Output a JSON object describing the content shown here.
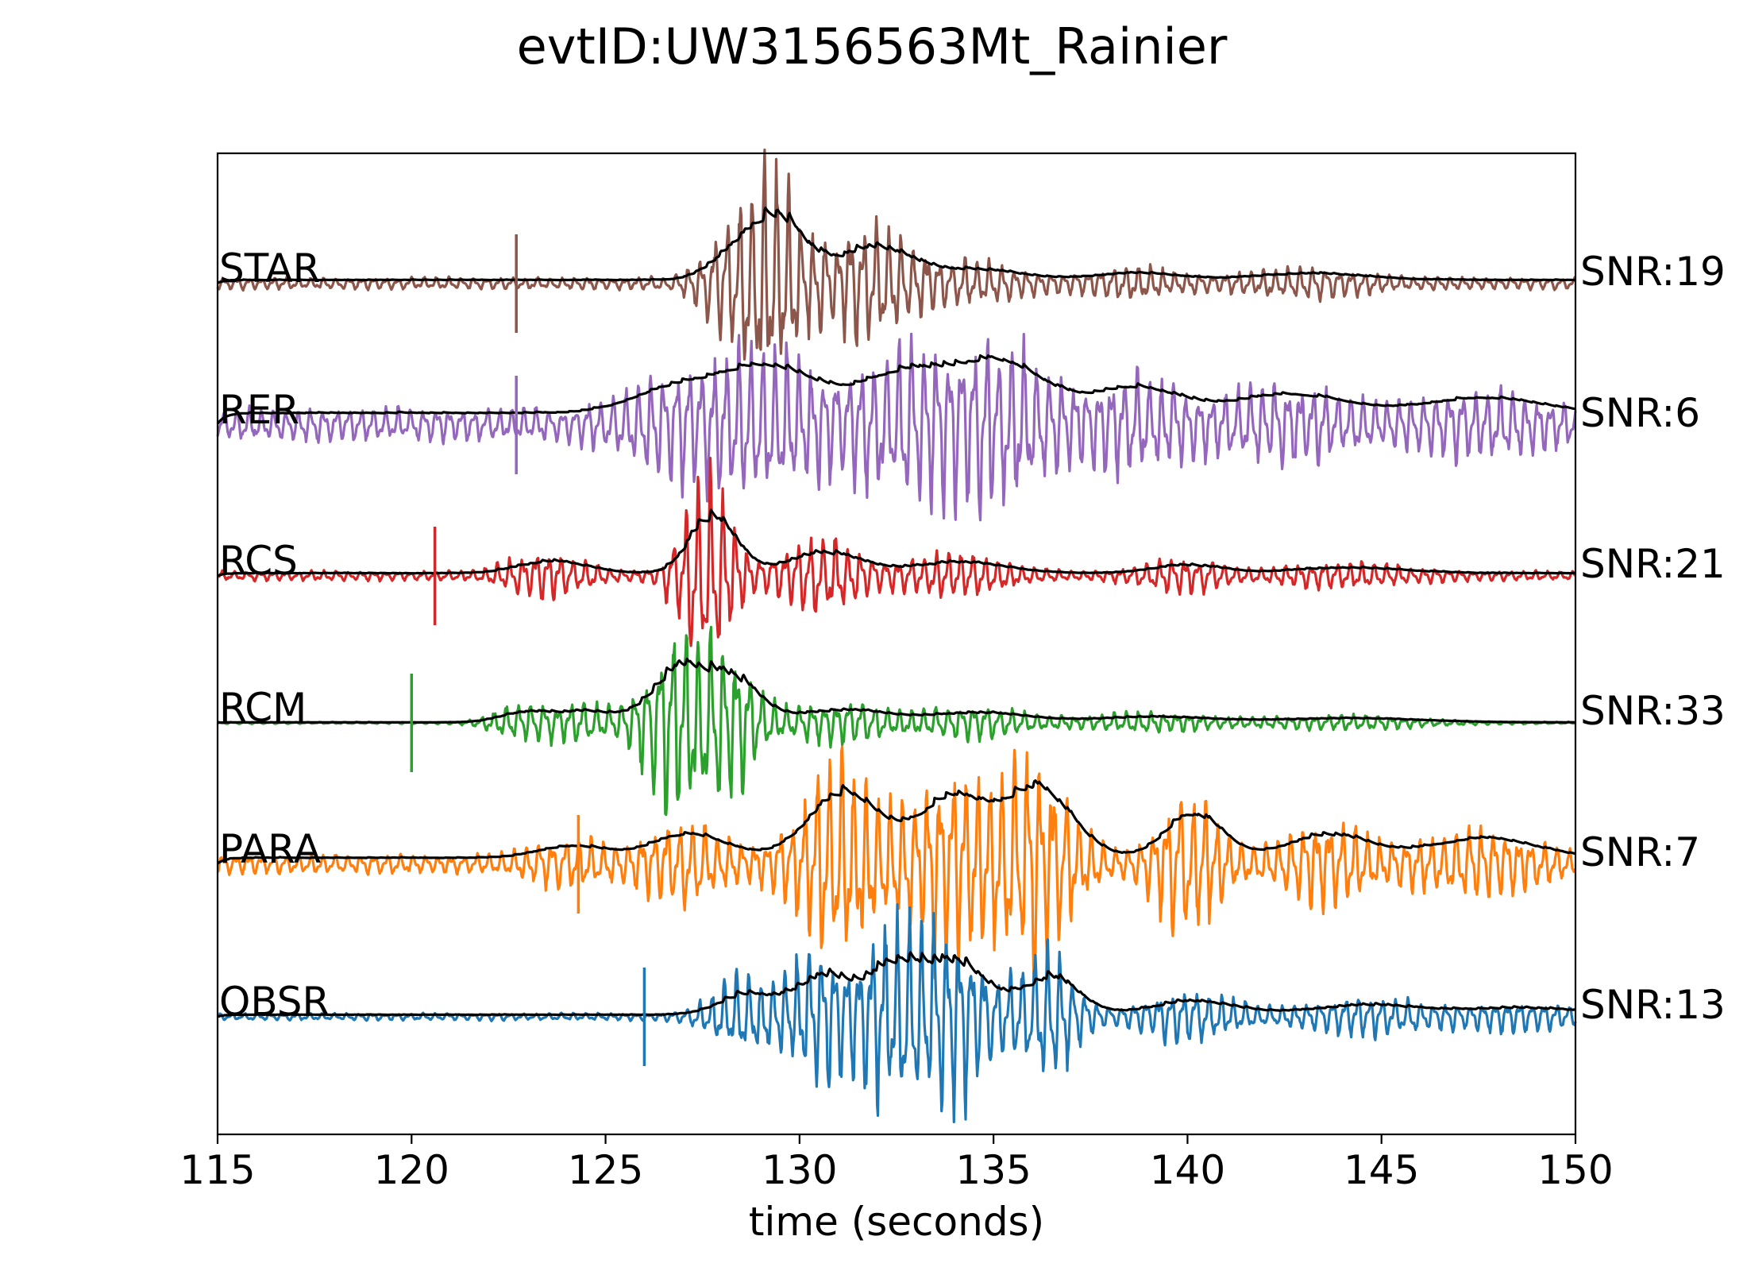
{
  "chart_data": {
    "type": "line",
    "title": "evtID:UW3156563Mt_Rainier",
    "xlabel": "time (seconds)",
    "ylabel": "",
    "xlim": [
      115,
      150
    ],
    "xticks": [
      "115",
      "120",
      "125",
      "130",
      "135",
      "140",
      "145",
      "150"
    ],
    "xtick_values": [
      115,
      120,
      125,
      130,
      135,
      140,
      145,
      150
    ],
    "grid": false,
    "legend": "none",
    "envelope_color": "#000000",
    "series": [
      {
        "name": "STAR",
        "snr_label": "SNR:19",
        "color": "#8c564b",
        "pick_time": 122.7,
        "noise": 0.05,
        "env_scale": 0.6,
        "packets": [
          {
            "t": 128.4,
            "amp": 0.45,
            "width": 1.0
          },
          {
            "t": 129.4,
            "amp": 0.7,
            "width": 0.9
          },
          {
            "t": 131.8,
            "amp": 0.45,
            "width": 1.3
          },
          {
            "t": 134.5,
            "amp": 0.14,
            "width": 1.5
          },
          {
            "t": 138.5,
            "amp": 0.1,
            "width": 1.5
          },
          {
            "t": 143.0,
            "amp": 0.09,
            "width": 2.0
          }
        ]
      },
      {
        "name": "RER",
        "snr_label": "SNR:6",
        "color": "#9467bd",
        "pick_time": 122.7,
        "noise": 0.14,
        "env_scale": 0.75,
        "packets": [
          {
            "t": 126.5,
            "amp": 0.25,
            "width": 1.5
          },
          {
            "t": 129.0,
            "amp": 0.55,
            "width": 1.8
          },
          {
            "t": 132.5,
            "amp": 0.45,
            "width": 1.5
          },
          {
            "t": 135.0,
            "amp": 0.6,
            "width": 1.6
          },
          {
            "t": 138.5,
            "amp": 0.3,
            "width": 1.5
          },
          {
            "t": 142.5,
            "amp": 0.22,
            "width": 2.0
          },
          {
            "t": 147.5,
            "amp": 0.18,
            "width": 2.0
          }
        ]
      },
      {
        "name": "RCS",
        "snr_label": "SNR:21",
        "color": "#d62728",
        "pick_time": 120.6,
        "noise": 0.04,
        "env_scale": 0.55,
        "packets": [
          {
            "t": 123.5,
            "amp": 0.18,
            "width": 1.2
          },
          {
            "t": 127.6,
            "amp": 0.85,
            "width": 0.8
          },
          {
            "t": 130.5,
            "amp": 0.3,
            "width": 1.3
          },
          {
            "t": 134.0,
            "amp": 0.16,
            "width": 1.6
          },
          {
            "t": 139.8,
            "amp": 0.12,
            "width": 1.2
          },
          {
            "t": 144.0,
            "amp": 0.08,
            "width": 2.0
          }
        ]
      },
      {
        "name": "RCM",
        "snr_label": "SNR:33",
        "color": "#2ca02c",
        "pick_time": 120.0,
        "noise": 0.008,
        "env_scale": 0.55,
        "packets": [
          {
            "t": 122.8,
            "amp": 0.15,
            "width": 0.9
          },
          {
            "t": 124.4,
            "amp": 0.16,
            "width": 1.0
          },
          {
            "t": 126.8,
            "amp": 0.8,
            "width": 1.0
          },
          {
            "t": 128.2,
            "amp": 0.55,
            "width": 0.9
          },
          {
            "t": 131.0,
            "amp": 0.18,
            "width": 1.6
          },
          {
            "t": 134.5,
            "amp": 0.14,
            "width": 1.8
          },
          {
            "t": 139.0,
            "amp": 0.08,
            "width": 2.0
          },
          {
            "t": 144.0,
            "amp": 0.06,
            "width": 2.5
          }
        ]
      },
      {
        "name": "PARA",
        "snr_label": "SNR:7",
        "color": "#ff7f0e",
        "pick_time": 124.3,
        "noise": 0.08,
        "env_scale": 0.7,
        "packets": [
          {
            "t": 124.0,
            "amp": 0.15,
            "width": 1.2
          },
          {
            "t": 127.0,
            "amp": 0.3,
            "width": 1.3
          },
          {
            "t": 131.0,
            "amp": 0.8,
            "width": 1.3
          },
          {
            "t": 133.8,
            "amp": 0.75,
            "width": 1.2
          },
          {
            "t": 136.0,
            "amp": 0.85,
            "width": 1.2
          },
          {
            "t": 140.0,
            "amp": 0.55,
            "width": 1.0
          },
          {
            "t": 143.5,
            "amp": 0.28,
            "width": 1.5
          },
          {
            "t": 147.5,
            "amp": 0.25,
            "width": 1.8
          }
        ]
      },
      {
        "name": "OBSR",
        "snr_label": "SNR:13",
        "color": "#1f77b4",
        "pick_time": 126.0,
        "noise": 0.03,
        "env_scale": 0.55,
        "packets": [
          {
            "t": 128.5,
            "amp": 0.3,
            "width": 1.0
          },
          {
            "t": 130.5,
            "amp": 0.55,
            "width": 1.0
          },
          {
            "t": 132.4,
            "amp": 0.75,
            "width": 1.0
          },
          {
            "t": 134.0,
            "amp": 0.7,
            "width": 1.0
          },
          {
            "t": 136.3,
            "amp": 0.55,
            "width": 1.0
          },
          {
            "t": 140.0,
            "amp": 0.2,
            "width": 1.5
          },
          {
            "t": 144.5,
            "amp": 0.14,
            "width": 2.0
          },
          {
            "t": 148.5,
            "amp": 0.1,
            "width": 2.0
          }
        ]
      }
    ]
  }
}
